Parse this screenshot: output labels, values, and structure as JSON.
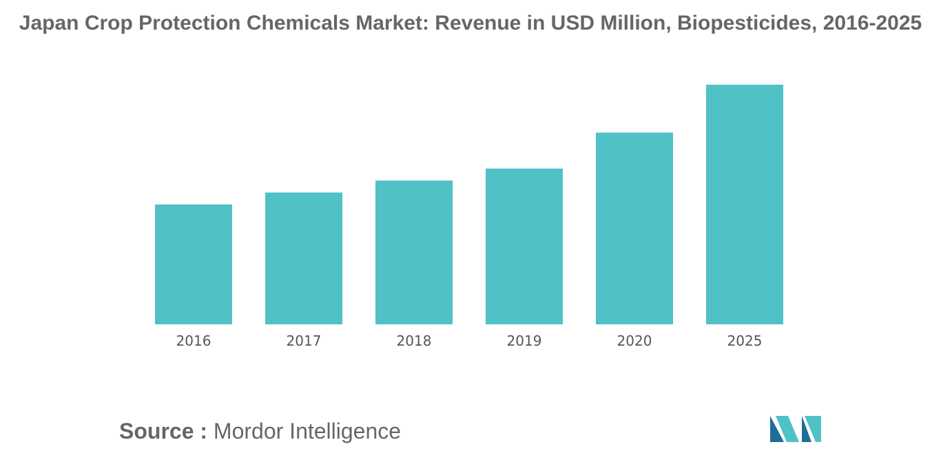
{
  "chart_data": {
    "type": "bar",
    "title": "Japan Crop Protection Chemicals Market: Revenue in USD Million, Biopesticides, 2016-2025",
    "categories": [
      "2016",
      "2017",
      "2018",
      "2019",
      "2020",
      "2025"
    ],
    "series": [
      {
        "name": "Biopesticides Revenue (USD Million)",
        "values": [
          50,
          55,
          60,
          65,
          80,
          100
        ]
      }
    ],
    "xlabel": "",
    "ylabel": "",
    "ylim": [
      0,
      100
    ],
    "grid": false,
    "legend": "none",
    "color": "#4fc1c7"
  },
  "source": {
    "label": "Source :",
    "value": "Mordor Intelligence"
  },
  "colors": {
    "logo_dark": "#1f6e99",
    "logo_light": "#4fc1c7"
  }
}
